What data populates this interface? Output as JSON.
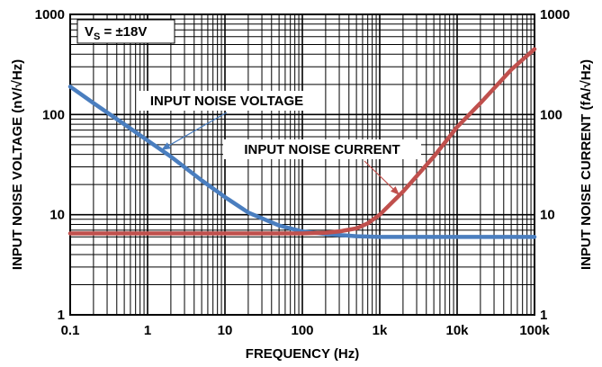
{
  "chart_data": {
    "type": "line",
    "xlabel": "FREQUENCY (Hz)",
    "ylabel_left": "INPUT NOISE VOLTAGE (nV/√Hz)",
    "ylabel_right": "INPUT NOISE CURRENT (fA/√Hz)",
    "xscale": "log",
    "yscale": "log",
    "xlim": [
      0.1,
      100000
    ],
    "ylim": [
      1,
      1000
    ],
    "grid": true,
    "x_tick_labels": [
      "0.1",
      "1",
      "10",
      "100",
      "1k",
      "10k",
      "100k"
    ],
    "y_tick_labels": [
      "1",
      "10",
      "100",
      "1000"
    ],
    "condition": {
      "main": "V",
      "sub": "S",
      "rest": " = ±18V"
    },
    "series": [
      {
        "name": "INPUT NOISE VOLTAGE",
        "color": "#4a7ebf",
        "x": [
          0.1,
          0.2,
          0.5,
          1,
          2,
          5,
          10,
          20,
          50,
          100,
          200,
          500,
          1000,
          10000,
          100000
        ],
        "y": [
          190,
          130,
          80,
          55,
          38,
          22,
          15,
          10.5,
          7.8,
          6.8,
          6.4,
          6.1,
          6.0,
          6.0,
          6.0
        ]
      },
      {
        "name": "INPUT NOISE CURRENT",
        "color": "#c0504d",
        "x": [
          0.1,
          1,
          10,
          100,
          200,
          300,
          500,
          700,
          1000,
          2000,
          5000,
          10000,
          20000,
          50000,
          100000
        ],
        "y": [
          6.5,
          6.5,
          6.5,
          6.5,
          6.6,
          6.8,
          7.3,
          8.2,
          10,
          17,
          38,
          75,
          130,
          280,
          450
        ]
      }
    ],
    "annotations": [
      {
        "text": "INPUT NOISE VOLTAGE",
        "arrow_to_series": 0,
        "arrow_x": 1.5
      },
      {
        "text": "INPUT NOISE CURRENT",
        "arrow_to_series": 1,
        "arrow_x": 1800
      }
    ]
  }
}
